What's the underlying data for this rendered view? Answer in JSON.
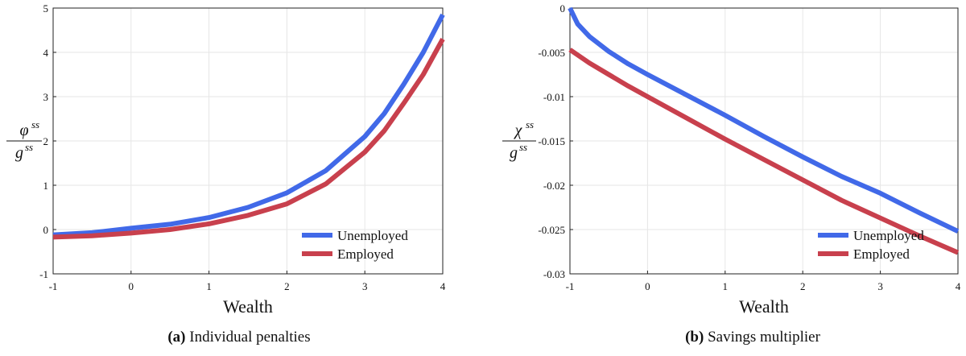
{
  "colors": {
    "unemployed": "#4169e8",
    "employed": "#c8404d"
  },
  "chart_data": [
    {
      "id": "a",
      "type": "line",
      "caption_label": "(a)",
      "caption_text": "Individual penalties",
      "xlabel": "Wealth",
      "ylabel_parts": [
        "φ",
        "ss",
        "g",
        "ss"
      ],
      "xlim": [
        -1,
        4
      ],
      "ylim": [
        -1,
        5
      ],
      "xticks": [
        -1,
        0,
        1,
        2,
        3,
        4
      ],
      "yticks": [
        -1,
        0,
        1,
        2,
        3,
        4,
        5
      ],
      "xtick_labels": [
        "-1",
        "0",
        "1",
        "2",
        "3",
        "4"
      ],
      "ytick_labels": [
        "-1",
        "0",
        "1",
        "2",
        "3",
        "4",
        "5"
      ],
      "grid": true,
      "legend_position": "bottom-right",
      "series": [
        {
          "name": "Unemployed",
          "color": "#4169e8",
          "x": [
            -1,
            -0.5,
            0,
            0.5,
            1,
            1.5,
            2,
            2.5,
            3,
            3.25,
            3.5,
            3.75,
            4
          ],
          "y": [
            -0.12,
            -0.07,
            0.03,
            0.12,
            0.27,
            0.5,
            0.83,
            1.33,
            2.1,
            2.62,
            3.28,
            4.0,
            4.85
          ]
        },
        {
          "name": "Employed",
          "color": "#c8404d",
          "x": [
            -1,
            -0.5,
            0,
            0.5,
            1,
            1.5,
            2,
            2.5,
            3,
            3.25,
            3.5,
            3.75,
            4
          ],
          "y": [
            -0.17,
            -0.14,
            -0.08,
            0.0,
            0.13,
            0.32,
            0.58,
            1.03,
            1.75,
            2.23,
            2.85,
            3.5,
            4.3
          ]
        }
      ]
    },
    {
      "id": "b",
      "type": "line",
      "caption_label": "(b)",
      "caption_text": "Savings multiplier",
      "xlabel": "Wealth",
      "ylabel_parts": [
        "χ",
        "ss",
        "g",
        "ss"
      ],
      "xlim": [
        -1,
        4
      ],
      "ylim": [
        -0.03,
        0
      ],
      "xticks": [
        -1,
        0,
        1,
        2,
        3,
        4
      ],
      "yticks": [
        -0.03,
        -0.025,
        -0.02,
        -0.015,
        -0.01,
        -0.005,
        0
      ],
      "xtick_labels": [
        "-1",
        "0",
        "1",
        "2",
        "3",
        "4"
      ],
      "ytick_labels": [
        "-0.03",
        "-0.025",
        "-0.02",
        "-0.015",
        "-0.01",
        "-0.005",
        "0"
      ],
      "grid": true,
      "legend_position": "bottom-right",
      "series": [
        {
          "name": "Unemployed",
          "color": "#4169e8",
          "x": [
            -1,
            -0.9,
            -0.75,
            -0.5,
            -0.25,
            0,
            0.5,
            1,
            1.5,
            2,
            2.5,
            3,
            3.5,
            4
          ],
          "y": [
            0,
            -0.0018,
            -0.0032,
            -0.0049,
            -0.0063,
            -0.0075,
            -0.0098,
            -0.0121,
            -0.0145,
            -0.0168,
            -0.019,
            -0.0209,
            -0.0231,
            -0.0252
          ]
        },
        {
          "name": "Employed",
          "color": "#c8404d",
          "x": [
            -1,
            -0.75,
            -0.5,
            -0.25,
            0,
            0.5,
            1,
            1.5,
            2,
            2.5,
            3,
            3.5,
            4
          ],
          "y": [
            -0.0047,
            -0.0062,
            -0.0075,
            -0.0088,
            -0.01,
            -0.0124,
            -0.0148,
            -0.0171,
            -0.0194,
            -0.0217,
            -0.0237,
            -0.0257,
            -0.0276
          ]
        }
      ]
    }
  ]
}
